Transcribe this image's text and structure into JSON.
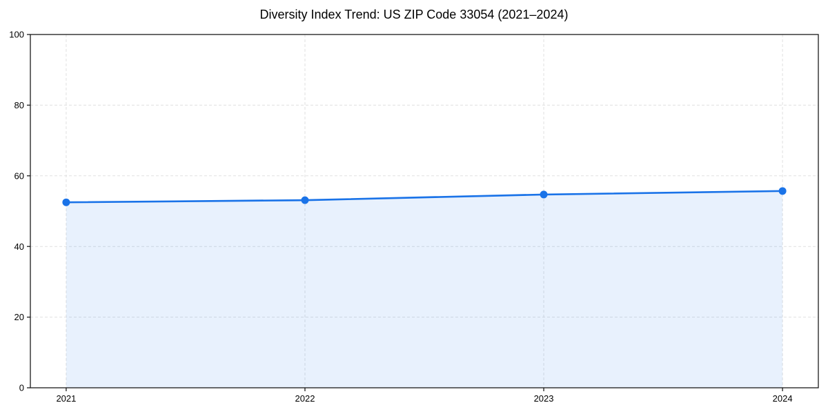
{
  "title": "Diversity Index Trend: US ZIP Code 33054 (2021–2024)",
  "chart_data": {
    "type": "area",
    "title": "Diversity Index Trend: US ZIP Code 33054 (2021–2024)",
    "x": [
      2021,
      2022,
      2023,
      2024
    ],
    "series": [
      {
        "name": "Diversity Index",
        "values": [
          52.5,
          53.1,
          54.7,
          55.7
        ]
      }
    ],
    "xlabel": "",
    "ylabel": "",
    "xlim": [
      2020.85,
      2024.15
    ],
    "ylim": [
      0,
      100
    ],
    "xticks": [
      2021,
      2022,
      2023,
      2024
    ],
    "xtick_labels": [
      "2021",
      "2022",
      "2023",
      "2024"
    ],
    "yticks": [
      0,
      20,
      40,
      60,
      80,
      100
    ],
    "ytick_labels": [
      "0",
      "20",
      "40",
      "60",
      "80",
      "100"
    ],
    "grid": true,
    "grid_style": "dashed",
    "legend": false,
    "marker": "circle",
    "colors": {
      "line": "#1a73e8",
      "marker": "#1a73e8",
      "fill": "#1a73e8",
      "fill_opacity": 0.1,
      "grid": "#e0e0e0",
      "axis": "#1a1a1a",
      "text": "#000000",
      "background": "#ffffff"
    }
  }
}
